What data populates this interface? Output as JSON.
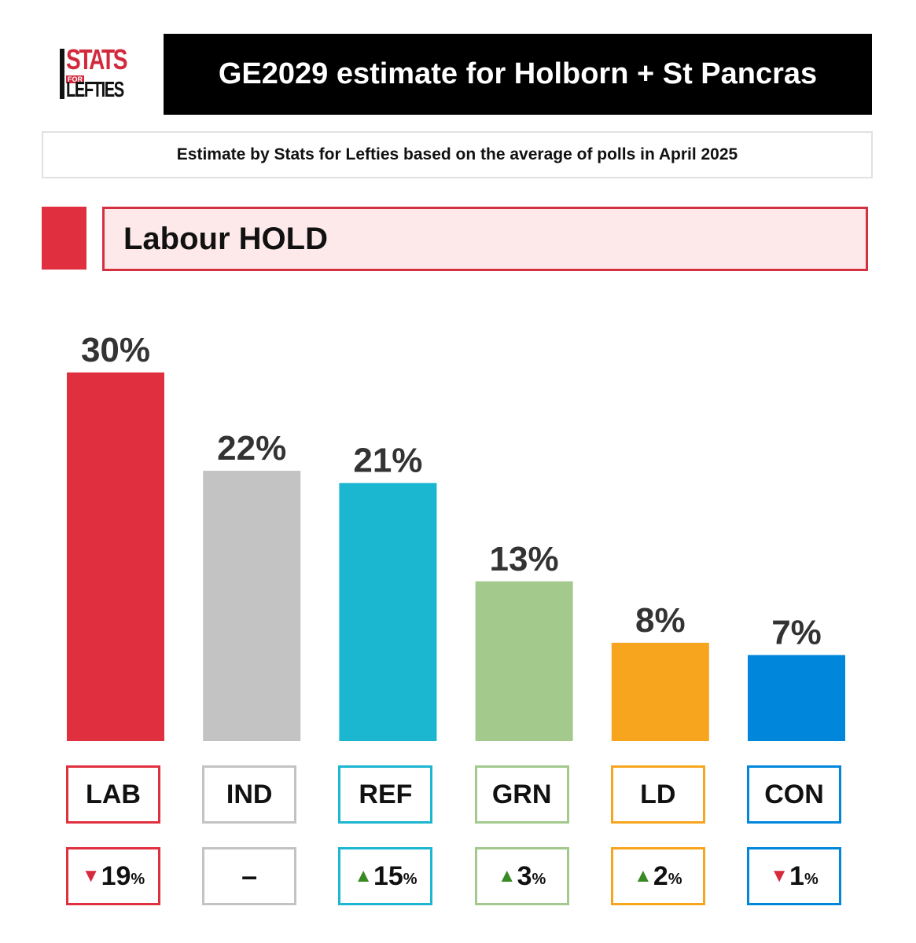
{
  "logo": {
    "line1": "STATS",
    "line2": "FOR",
    "line3": "LEFTIES"
  },
  "title": "GE2029 estimate for Holborn + St Pancras",
  "subtitle": "Estimate by Stats for Lefties based on the average of polls in April 2025",
  "result": {
    "text": "Labour HOLD",
    "color": "#e0303f"
  },
  "chart_data": {
    "type": "bar",
    "categories": [
      "LAB",
      "IND",
      "REF",
      "GRN",
      "LD",
      "CON"
    ],
    "values": [
      30,
      22,
      21,
      13,
      8,
      7
    ],
    "value_labels": [
      "30%",
      "22%",
      "21%",
      "13%",
      "8%",
      "7%"
    ],
    "unit": "%",
    "colors": [
      "#e0303f",
      "#c3c3c3",
      "#1bb6cf",
      "#a3c98c",
      "#f7a51e",
      "#0087dc"
    ],
    "changes": [
      {
        "direction": "down",
        "value": "19",
        "unit": "%"
      },
      {
        "direction": "none",
        "value": "–",
        "unit": ""
      },
      {
        "direction": "up",
        "value": "15",
        "unit": "%"
      },
      {
        "direction": "up",
        "value": "3",
        "unit": "%"
      },
      {
        "direction": "up",
        "value": "2",
        "unit": "%"
      },
      {
        "direction": "down",
        "value": "1",
        "unit": "%"
      }
    ],
    "arrow_colors": {
      "up": "#3a8a24",
      "down": "#d62b3e"
    },
    "ylim": [
      0,
      30
    ]
  }
}
